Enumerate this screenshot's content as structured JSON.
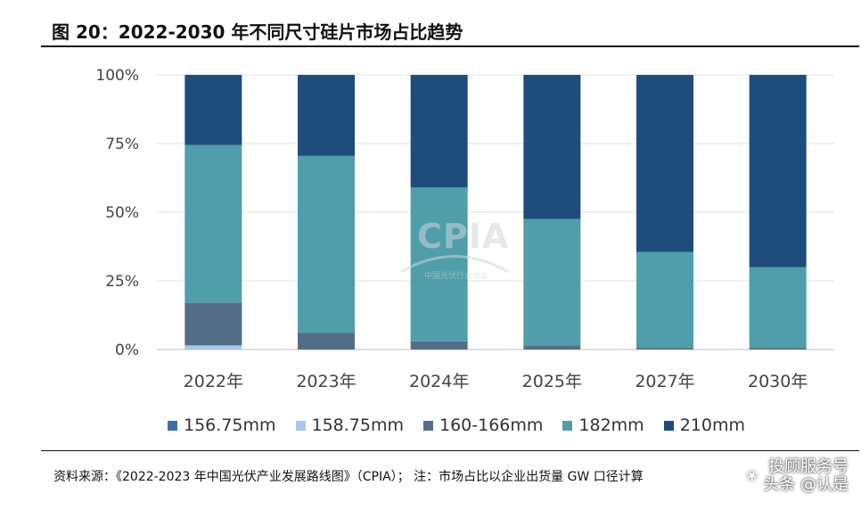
{
  "title": "图 20：2022-2030 年不同尺寸硅片市场占比趋势",
  "chart_data": {
    "type": "bar",
    "stacked": true,
    "categories": [
      "2022年",
      "2023年",
      "2024年",
      "2025年",
      "2027年",
      "2030年"
    ],
    "series": [
      {
        "name": "156.75mm",
        "color": "#3f6fa8",
        "values": [
          0,
          0,
          0,
          0,
          0,
          0
        ]
      },
      {
        "name": "158.75mm",
        "color": "#a8c8ee",
        "values": [
          1.5,
          0,
          0,
          0,
          0,
          0
        ]
      },
      {
        "name": "160-166mm",
        "color": "#546d87",
        "values": [
          15.5,
          6,
          3,
          1.5,
          0.5,
          0.5
        ]
      },
      {
        "name": "182mm",
        "color": "#4f9ea9",
        "values": [
          57.5,
          64.5,
          56,
          46,
          35,
          29.5
        ]
      },
      {
        "name": "210mm",
        "color": "#1e4d7c",
        "values": [
          25.5,
          29.5,
          41,
          52.5,
          64.5,
          70
        ]
      }
    ],
    "yticks": [
      "0%",
      "25%",
      "50%",
      "75%",
      "100%"
    ],
    "ylim": [
      0,
      100
    ],
    "legend_position": "bottom",
    "grid": true
  },
  "watermark_text": {
    "logo": "CPIA",
    "logo_sub": "中国光伏行业协会"
  },
  "source": "资料来源：《2022-2023 年中国光伏产业发展路线图》（CPIA）；  注：市场占比以企业出货量 GW 口径计算",
  "overlay": {
    "line1": "投顾服务号",
    "line2": "头条 @认是"
  }
}
